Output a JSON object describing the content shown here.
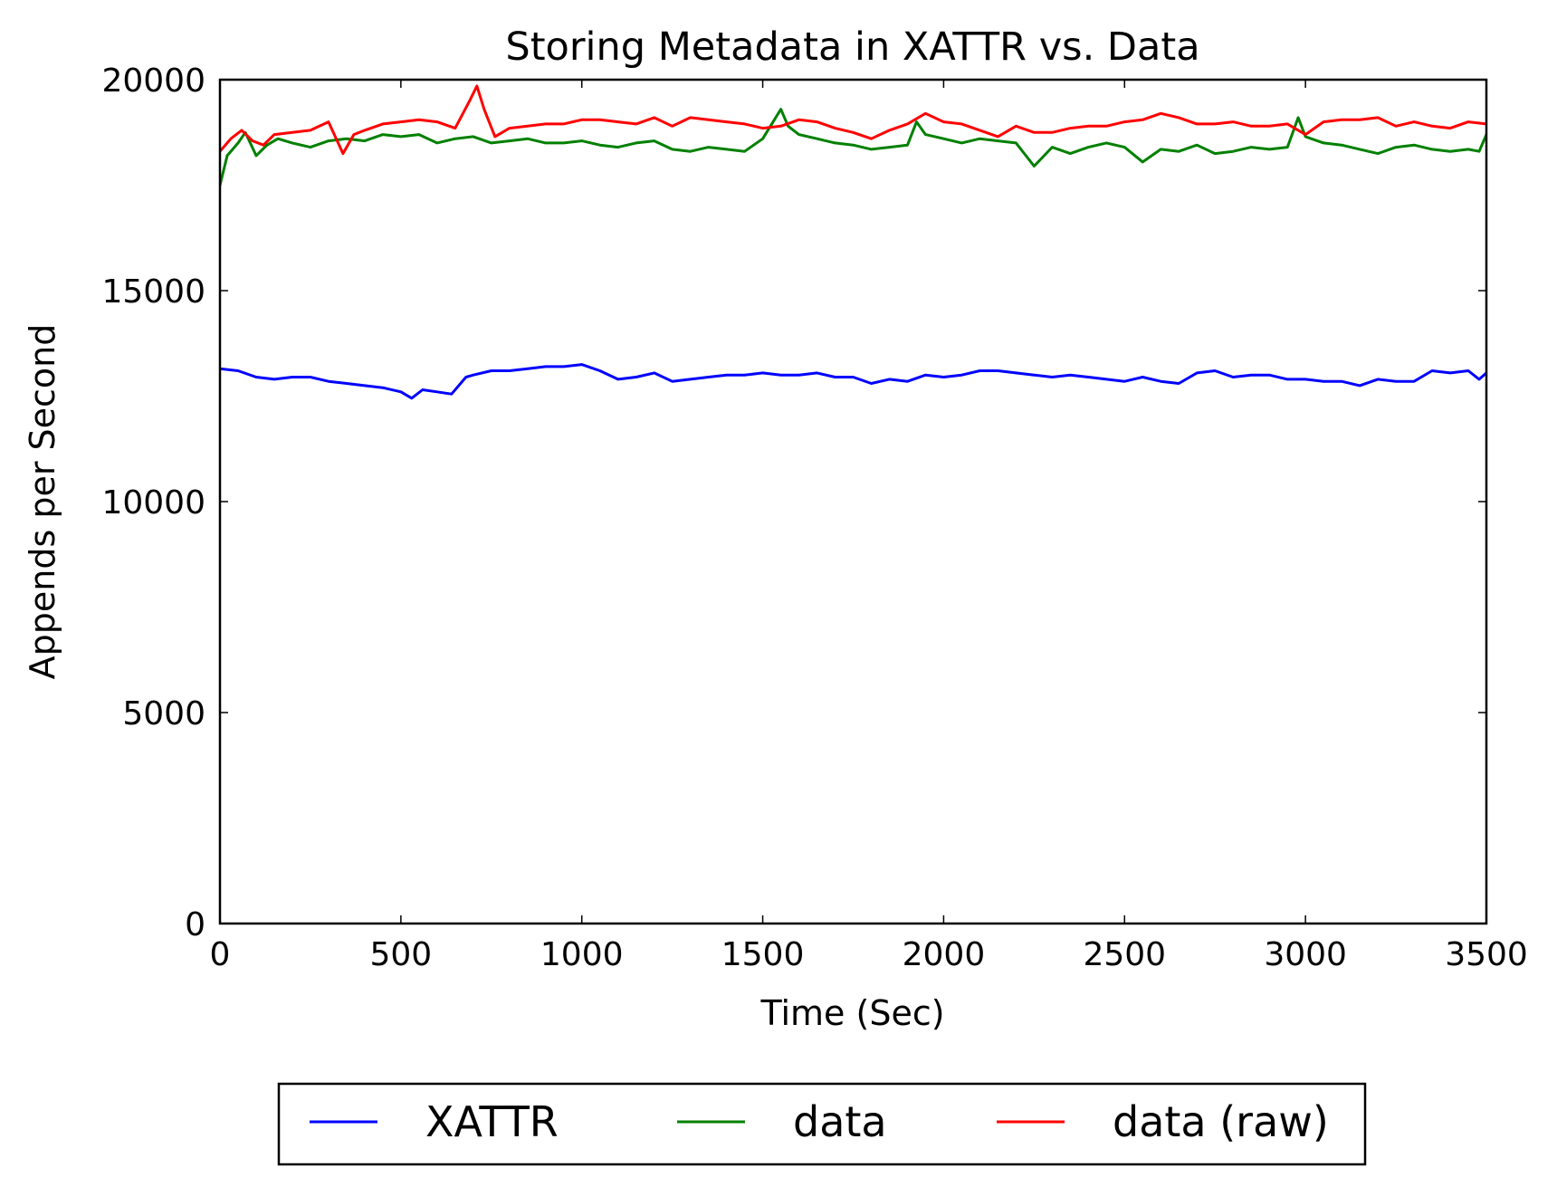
{
  "chart_data": {
    "type": "line",
    "title": "Storing Metadata in XATTR vs. Data",
    "xlabel": "Time (Sec)",
    "ylabel": "Appends per Second",
    "xlim": [
      0,
      3500
    ],
    "ylim": [
      0,
      20000
    ],
    "xticks": [
      0,
      500,
      1000,
      1500,
      2000,
      2500,
      3000,
      3500
    ],
    "yticks": [
      0,
      5000,
      10000,
      15000,
      20000
    ],
    "xtick_labels": [
      "0",
      "500",
      "1000",
      "1500",
      "2000",
      "2500",
      "3000",
      "3500"
    ],
    "ytick_labels": [
      "0",
      "5000",
      "10000",
      "15000",
      "20000"
    ],
    "grid": false,
    "legend_position": "below",
    "series": [
      {
        "name": "XATTR",
        "color": "#0000ff",
        "points": [
          [
            0,
            13150
          ],
          [
            50,
            13100
          ],
          [
            100,
            12950
          ],
          [
            150,
            12900
          ],
          [
            200,
            12950
          ],
          [
            250,
            12950
          ],
          [
            300,
            12850
          ],
          [
            350,
            12800
          ],
          [
            400,
            12750
          ],
          [
            450,
            12700
          ],
          [
            500,
            12600
          ],
          [
            530,
            12450
          ],
          [
            560,
            12650
          ],
          [
            600,
            12600
          ],
          [
            640,
            12550
          ],
          [
            680,
            12950
          ],
          [
            700,
            13000
          ],
          [
            750,
            13100
          ],
          [
            800,
            13100
          ],
          [
            850,
            13150
          ],
          [
            900,
            13200
          ],
          [
            950,
            13200
          ],
          [
            1000,
            13250
          ],
          [
            1050,
            13100
          ],
          [
            1100,
            12900
          ],
          [
            1150,
            12950
          ],
          [
            1200,
            13050
          ],
          [
            1250,
            12850
          ],
          [
            1300,
            12900
          ],
          [
            1350,
            12950
          ],
          [
            1400,
            13000
          ],
          [
            1450,
            13000
          ],
          [
            1500,
            13050
          ],
          [
            1550,
            13000
          ],
          [
            1600,
            13000
          ],
          [
            1650,
            13050
          ],
          [
            1700,
            12950
          ],
          [
            1750,
            12950
          ],
          [
            1800,
            12800
          ],
          [
            1850,
            12900
          ],
          [
            1900,
            12850
          ],
          [
            1950,
            13000
          ],
          [
            2000,
            12950
          ],
          [
            2050,
            13000
          ],
          [
            2100,
            13100
          ],
          [
            2150,
            13100
          ],
          [
            2200,
            13050
          ],
          [
            2250,
            13000
          ],
          [
            2300,
            12950
          ],
          [
            2350,
            13000
          ],
          [
            2400,
            12950
          ],
          [
            2450,
            12900
          ],
          [
            2500,
            12850
          ],
          [
            2550,
            12950
          ],
          [
            2600,
            12850
          ],
          [
            2650,
            12800
          ],
          [
            2700,
            13050
          ],
          [
            2750,
            13100
          ],
          [
            2800,
            12950
          ],
          [
            2850,
            13000
          ],
          [
            2900,
            13000
          ],
          [
            2950,
            12900
          ],
          [
            3000,
            12900
          ],
          [
            3050,
            12850
          ],
          [
            3100,
            12850
          ],
          [
            3150,
            12750
          ],
          [
            3200,
            12900
          ],
          [
            3250,
            12850
          ],
          [
            3300,
            12850
          ],
          [
            3350,
            13100
          ],
          [
            3400,
            13050
          ],
          [
            3450,
            13100
          ],
          [
            3480,
            12900
          ],
          [
            3500,
            13050
          ]
        ]
      },
      {
        "name": "data",
        "color": "#008000",
        "points": [
          [
            0,
            17500
          ],
          [
            20,
            18200
          ],
          [
            50,
            18500
          ],
          [
            70,
            18750
          ],
          [
            100,
            18200
          ],
          [
            130,
            18450
          ],
          [
            160,
            18600
          ],
          [
            200,
            18500
          ],
          [
            250,
            18400
          ],
          [
            300,
            18550
          ],
          [
            350,
            18600
          ],
          [
            400,
            18550
          ],
          [
            450,
            18700
          ],
          [
            500,
            18650
          ],
          [
            550,
            18700
          ],
          [
            600,
            18500
          ],
          [
            650,
            18600
          ],
          [
            700,
            18650
          ],
          [
            750,
            18500
          ],
          [
            800,
            18550
          ],
          [
            850,
            18600
          ],
          [
            900,
            18500
          ],
          [
            950,
            18500
          ],
          [
            1000,
            18550
          ],
          [
            1050,
            18450
          ],
          [
            1100,
            18400
          ],
          [
            1150,
            18500
          ],
          [
            1200,
            18550
          ],
          [
            1250,
            18350
          ],
          [
            1300,
            18300
          ],
          [
            1350,
            18400
          ],
          [
            1400,
            18350
          ],
          [
            1450,
            18300
          ],
          [
            1500,
            18600
          ],
          [
            1550,
            19300
          ],
          [
            1570,
            18900
          ],
          [
            1600,
            18700
          ],
          [
            1650,
            18600
          ],
          [
            1700,
            18500
          ],
          [
            1750,
            18450
          ],
          [
            1800,
            18350
          ],
          [
            1850,
            18400
          ],
          [
            1900,
            18450
          ],
          [
            1925,
            19000
          ],
          [
            1950,
            18700
          ],
          [
            2000,
            18600
          ],
          [
            2050,
            18500
          ],
          [
            2100,
            18600
          ],
          [
            2150,
            18550
          ],
          [
            2200,
            18500
          ],
          [
            2250,
            17950
          ],
          [
            2300,
            18400
          ],
          [
            2350,
            18250
          ],
          [
            2400,
            18400
          ],
          [
            2450,
            18500
          ],
          [
            2500,
            18400
          ],
          [
            2550,
            18050
          ],
          [
            2600,
            18350
          ],
          [
            2650,
            18300
          ],
          [
            2700,
            18450
          ],
          [
            2750,
            18250
          ],
          [
            2800,
            18300
          ],
          [
            2850,
            18400
          ],
          [
            2900,
            18350
          ],
          [
            2950,
            18400
          ],
          [
            2980,
            19100
          ],
          [
            3000,
            18650
          ],
          [
            3050,
            18500
          ],
          [
            3100,
            18450
          ],
          [
            3150,
            18350
          ],
          [
            3200,
            18250
          ],
          [
            3250,
            18400
          ],
          [
            3300,
            18450
          ],
          [
            3350,
            18350
          ],
          [
            3400,
            18300
          ],
          [
            3450,
            18350
          ],
          [
            3480,
            18300
          ],
          [
            3500,
            18700
          ]
        ]
      },
      {
        "name": "data (raw)",
        "color": "#ff0000",
        "points": [
          [
            0,
            18300
          ],
          [
            30,
            18600
          ],
          [
            60,
            18800
          ],
          [
            90,
            18550
          ],
          [
            120,
            18450
          ],
          [
            150,
            18700
          ],
          [
            200,
            18750
          ],
          [
            250,
            18800
          ],
          [
            300,
            19000
          ],
          [
            340,
            18250
          ],
          [
            370,
            18700
          ],
          [
            400,
            18800
          ],
          [
            450,
            18950
          ],
          [
            500,
            19000
          ],
          [
            550,
            19050
          ],
          [
            600,
            19000
          ],
          [
            650,
            18850
          ],
          [
            690,
            19500
          ],
          [
            710,
            19850
          ],
          [
            730,
            19300
          ],
          [
            760,
            18650
          ],
          [
            800,
            18850
          ],
          [
            850,
            18900
          ],
          [
            900,
            18950
          ],
          [
            950,
            18950
          ],
          [
            1000,
            19050
          ],
          [
            1050,
            19050
          ],
          [
            1100,
            19000
          ],
          [
            1150,
            18950
          ],
          [
            1200,
            19100
          ],
          [
            1250,
            18900
          ],
          [
            1300,
            19100
          ],
          [
            1350,
            19050
          ],
          [
            1400,
            19000
          ],
          [
            1450,
            18950
          ],
          [
            1500,
            18850
          ],
          [
            1550,
            18900
          ],
          [
            1600,
            19050
          ],
          [
            1650,
            19000
          ],
          [
            1700,
            18850
          ],
          [
            1750,
            18750
          ],
          [
            1800,
            18600
          ],
          [
            1850,
            18800
          ],
          [
            1900,
            18950
          ],
          [
            1950,
            19200
          ],
          [
            2000,
            19000
          ],
          [
            2050,
            18950
          ],
          [
            2100,
            18800
          ],
          [
            2150,
            18650
          ],
          [
            2200,
            18900
          ],
          [
            2250,
            18750
          ],
          [
            2300,
            18750
          ],
          [
            2350,
            18850
          ],
          [
            2400,
            18900
          ],
          [
            2450,
            18900
          ],
          [
            2500,
            19000
          ],
          [
            2550,
            19050
          ],
          [
            2600,
            19200
          ],
          [
            2650,
            19100
          ],
          [
            2700,
            18950
          ],
          [
            2750,
            18950
          ],
          [
            2800,
            19000
          ],
          [
            2850,
            18900
          ],
          [
            2900,
            18900
          ],
          [
            2950,
            18950
          ],
          [
            3000,
            18700
          ],
          [
            3050,
            19000
          ],
          [
            3100,
            19050
          ],
          [
            3150,
            19050
          ],
          [
            3200,
            19100
          ],
          [
            3250,
            18900
          ],
          [
            3300,
            19000
          ],
          [
            3350,
            18900
          ],
          [
            3400,
            18850
          ],
          [
            3450,
            19000
          ],
          [
            3500,
            18950
          ]
        ]
      }
    ]
  }
}
